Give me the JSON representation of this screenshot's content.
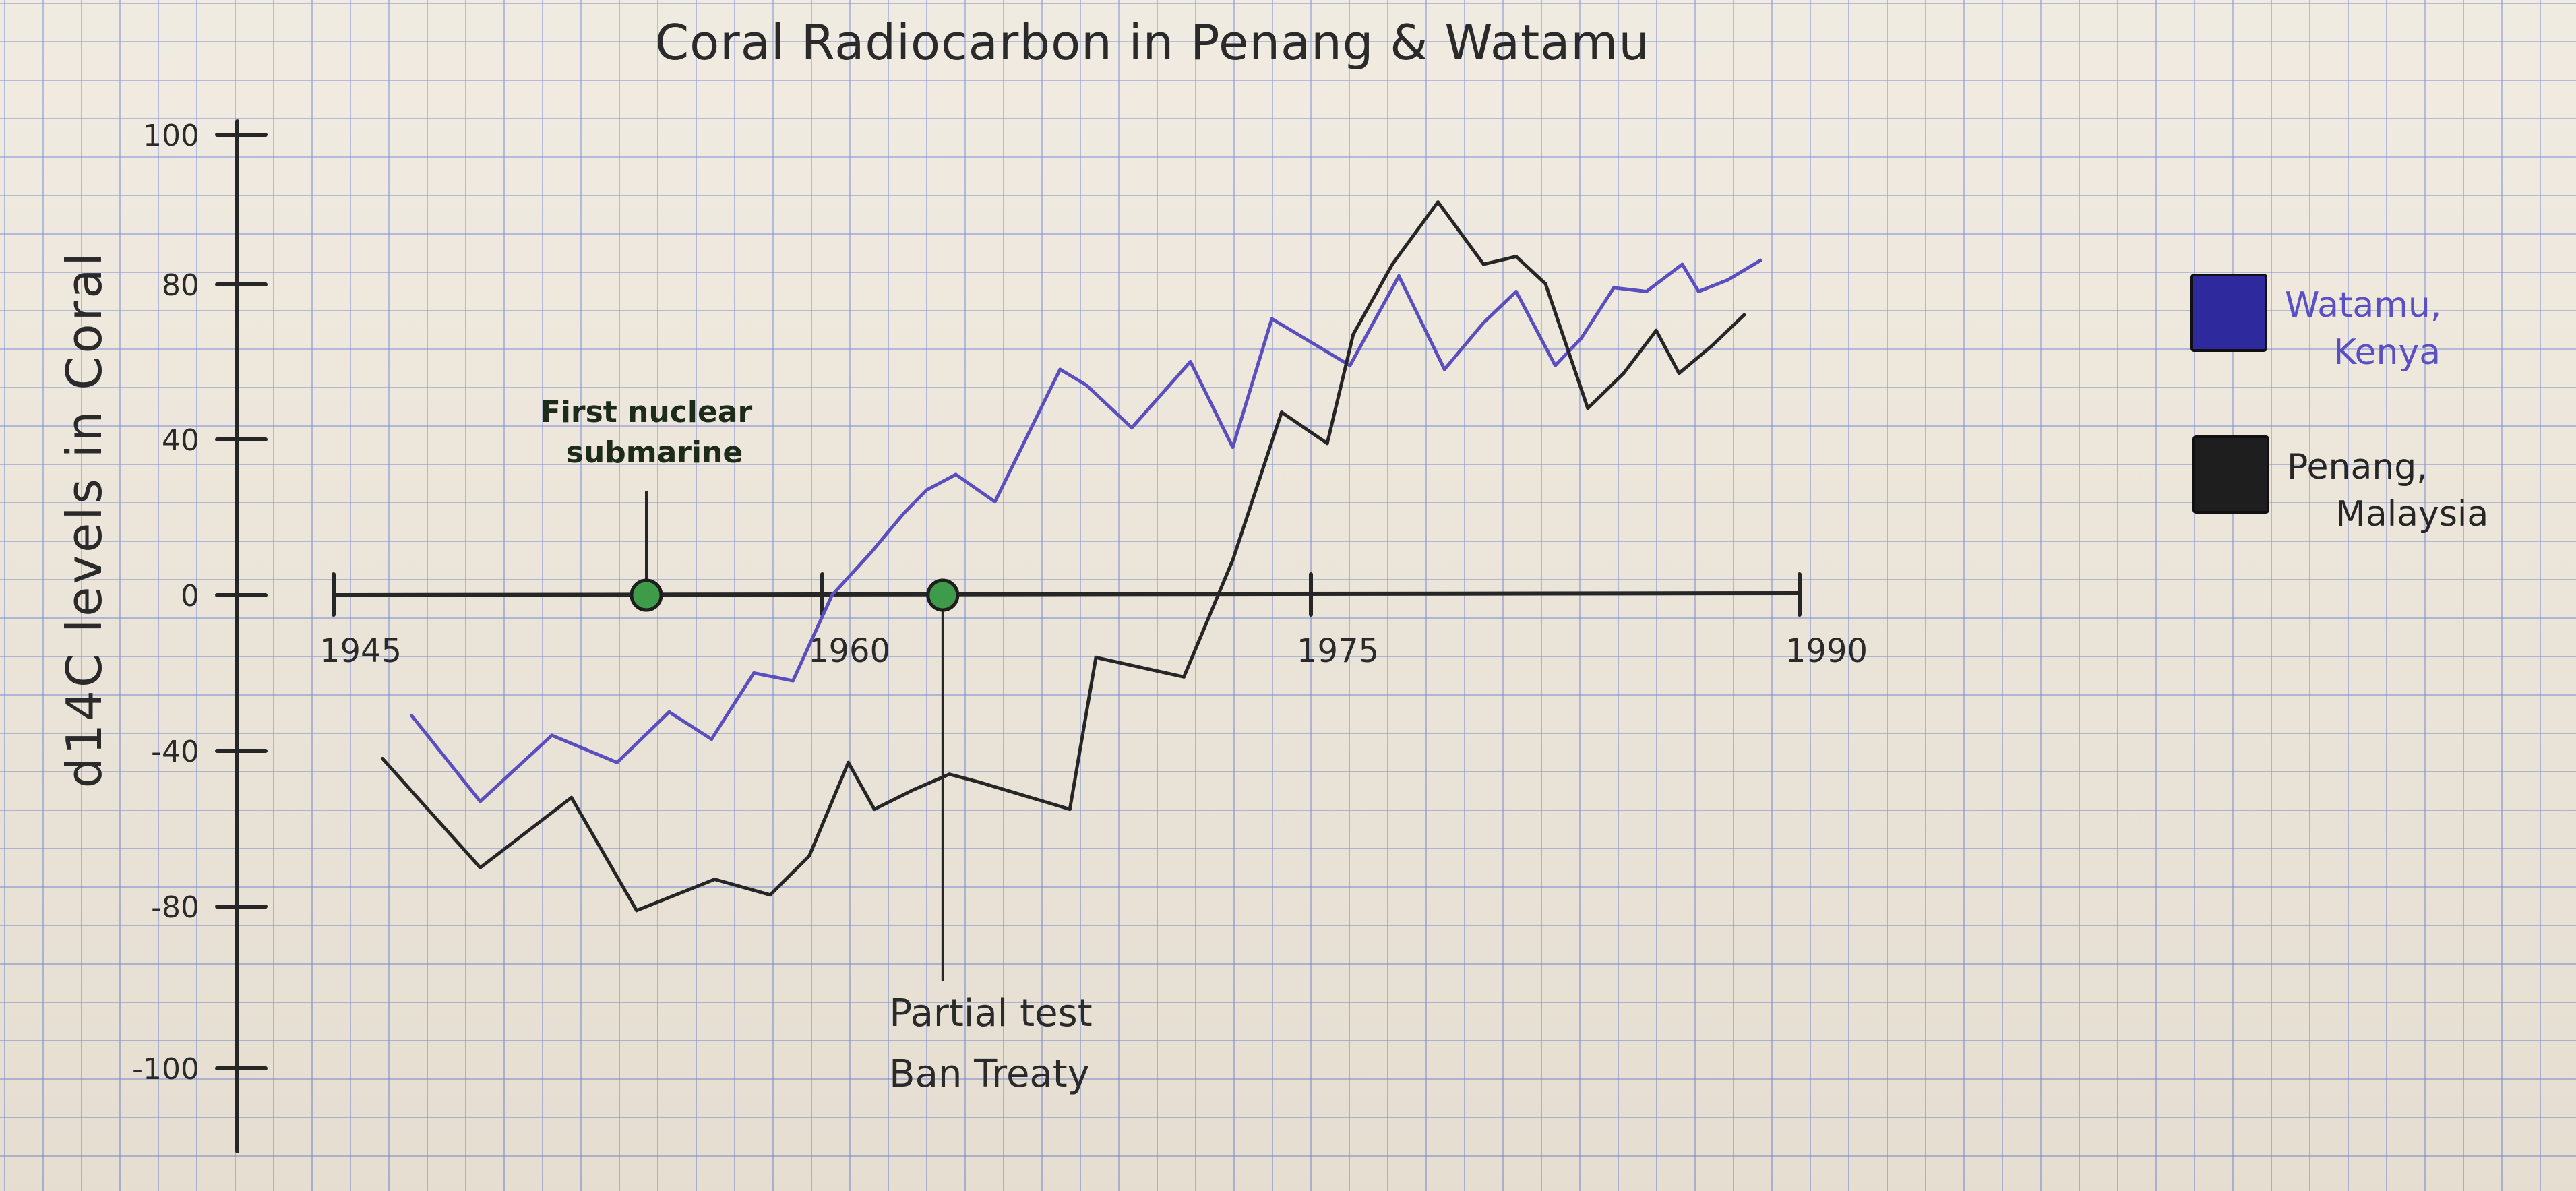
{
  "chart_data": {
    "type": "line",
    "title": "Coral Radiocarbon in Penang & Watamu",
    "xlabel": "",
    "ylabel": "d14C levels in Coral",
    "xlim": [
      1945,
      1990
    ],
    "ylim": [
      -150,
      100
    ],
    "x_ticks": [
      1945,
      1960,
      1975,
      1990
    ],
    "x_tick_labels": [
      "1945",
      "1960",
      "1975",
      "1990"
    ],
    "y_ticks": [
      100,
      80,
      40,
      0,
      -40,
      -80,
      -100
    ],
    "y_tick_labels": [
      "100",
      "80",
      "40",
      "0",
      "-40",
      "-80",
      "-100"
    ],
    "grid": true,
    "legend": "right",
    "series": [
      {
        "name": "Watamu, Kenya",
        "color": "#5b4fc0",
        "x": [
          1947.4,
          1949.5,
          1951.7,
          1953.7,
          1955.3,
          1956.6,
          1957.9,
          1959.1,
          1960.3,
          1961.5,
          1962.5,
          1963.2,
          1964.1,
          1965.3,
          1966.3,
          1967.3,
          1968.1,
          1969.5,
          1971.3,
          1972.6,
          1973.8,
          1975.2,
          1976.2,
          1977.7,
          1979.1,
          1980.3,
          1981.3,
          1982.5,
          1983.3,
          1984.3,
          1985.3,
          1986.4,
          1986.9,
          1987.8,
          1988.8
        ],
        "y": [
          -31,
          -53,
          -36,
          -43,
          -30,
          -37,
          -20,
          -22,
          0,
          11,
          21,
          27,
          31,
          24,
          41,
          58,
          54,
          43,
          60,
          38,
          71,
          64,
          59,
          82,
          58,
          70,
          78,
          59,
          66,
          79,
          78,
          85,
          78,
          81,
          86
        ]
      },
      {
        "name": "Penang, Malaysia",
        "color": "#262626",
        "x": [
          1946.5,
          1949.5,
          1952.3,
          1954.3,
          1956.7,
          1958.4,
          1959.6,
          1960.8,
          1961.6,
          1962.8,
          1963.9,
          1964.8,
          1967.6,
          1968.4,
          1971.1,
          1972.6,
          1974.1,
          1975.5,
          1976.3,
          1977.5,
          1978.9,
          1980.3,
          1981.3,
          1982.2,
          1983.5,
          1984.6,
          1985.6,
          1986.3,
          1987.3,
          1988.3
        ],
        "y": [
          -42,
          -70,
          -52,
          -81,
          -73,
          -77,
          -67,
          -43,
          -55,
          -50,
          -46,
          -48,
          -55,
          -16,
          -21,
          9,
          47,
          39,
          67,
          85,
          101,
          85,
          87,
          80,
          48,
          57,
          68,
          57,
          64,
          72
        ]
      }
    ],
    "annotations": [
      {
        "text": [
          "First nuclear",
          "submarine"
        ],
        "x": 1954.6,
        "y": 0
      },
      {
        "text": [
          "Partial test",
          "Ban Treaty"
        ],
        "x": 1963.7,
        "y": 0
      }
    ],
    "legend_items": [
      {
        "label": [
          "Watamu,",
          "Kenya"
        ],
        "color": "#2e2a9e",
        "text_color": "#5a4fc4"
      },
      {
        "label": [
          "Penang,",
          "Malaysia"
        ],
        "color": "#1e1e1e",
        "text_color": "#262626"
      }
    ]
  }
}
